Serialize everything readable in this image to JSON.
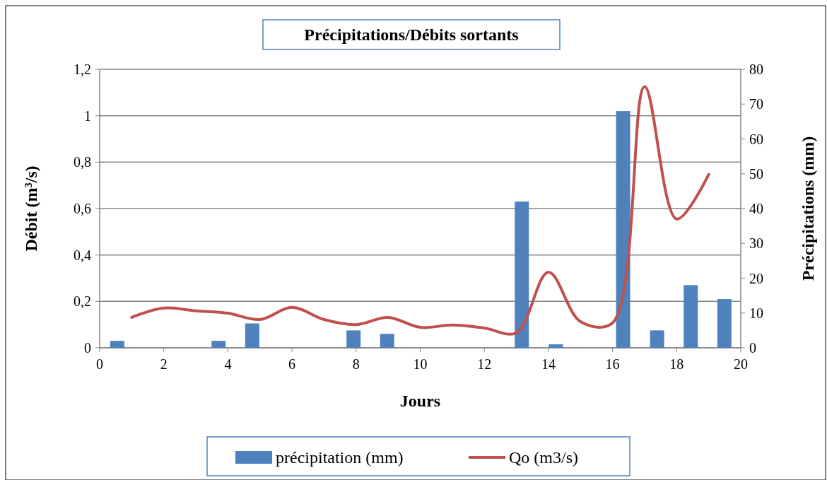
{
  "chart_data": {
    "type": "line",
    "title": "Précipitations/Débits sortants",
    "xlabel": "Jours",
    "ylabel": "Débit (m³/s)",
    "y2label": "Précipitations (mm)",
    "xlim": [
      0,
      20
    ],
    "xticks": [
      0,
      2,
      4,
      6,
      8,
      10,
      12,
      14,
      16,
      18,
      20
    ],
    "ylim": [
      0,
      1.2
    ],
    "yticks": [
      0,
      {
        "value": 0.2,
        "label": "0,2"
      },
      {
        "value": 0.4,
        "label": "0,4"
      },
      {
        "value": 0.6,
        "label": "0,6"
      },
      {
        "value": 0.8,
        "label": "0,8"
      },
      1,
      {
        "value": 1.2,
        "label": "1,2"
      }
    ],
    "y2lim": [
      0,
      80
    ],
    "y2ticks": [
      0,
      10,
      20,
      30,
      40,
      50,
      60,
      70,
      80
    ],
    "grid": "y",
    "legend": "bottom",
    "marker": "none",
    "series": [
      {
        "name": "précipitation (mm)",
        "type": "bar",
        "axis": "y2",
        "color": "#4f81bd",
        "x": [
          0.55,
          3.71,
          4.76,
          7.92,
          8.97,
          13.17,
          14.23,
          16.33,
          17.39,
          18.44,
          19.49
        ],
        "values": [
          2,
          2,
          7,
          5,
          4,
          42,
          1,
          68,
          5,
          18,
          14
        ]
      },
      {
        "name": "Qo (m3/s)",
        "color": "#c0504d",
        "x": [
          1,
          2,
          3,
          4,
          5,
          6,
          7,
          8,
          9,
          10,
          11,
          12,
          13,
          14,
          15,
          16,
          17,
          18,
          19
        ],
        "values": [
          0.131,
          0.171,
          0.159,
          0.149,
          0.122,
          0.174,
          0.122,
          0.1,
          0.131,
          0.088,
          0.098,
          0.085,
          0.065,
          0.326,
          0.113,
          0.107,
          1.125,
          0.555,
          0.747
        ]
      }
    ]
  }
}
